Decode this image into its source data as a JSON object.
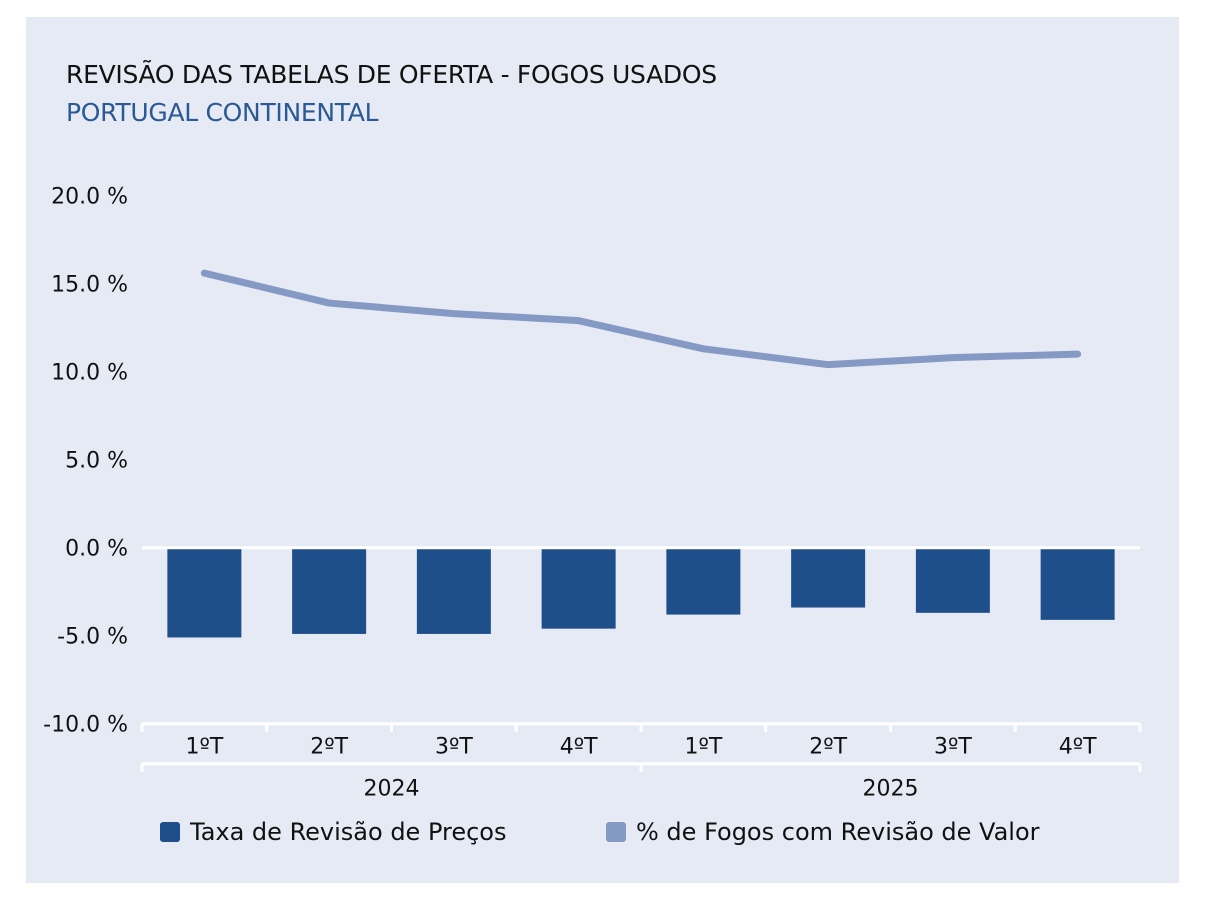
{
  "chart_data": {
    "type": "bar+line",
    "title": "REVISÃO DAS TABELAS DE OFERTA - FOGOS USADOS",
    "subtitle": "PORTUGAL CONTINENTAL",
    "categories": [
      "1ºT",
      "2ºT",
      "3ºT",
      "4ºT",
      "1ºT",
      "2ºT",
      "3ºT",
      "4ºT"
    ],
    "groups": [
      {
        "label": "2024",
        "span": 4
      },
      {
        "label": "2025",
        "span": 4
      }
    ],
    "yticks": [
      "20.0 %",
      "15.0 %",
      "10.0 %",
      "5.0 %",
      "0.0 %",
      "-5.0 %",
      "-10.0 %"
    ],
    "ylim": [
      -10,
      20
    ],
    "grid": false,
    "legend_position": "bottom",
    "series": [
      {
        "name": "Taxa de Revisão de Preços",
        "type": "bar",
        "color": "#1f4f8a",
        "values": [
          -5.1,
          -4.9,
          -4.9,
          -4.6,
          -3.8,
          -3.4,
          -3.7,
          -4.1
        ]
      },
      {
        "name": "% de Fogos com Revisão de Valor",
        "type": "line",
        "color": "#8499c4",
        "values": [
          15.6,
          13.9,
          13.3,
          12.9,
          11.3,
          10.4,
          10.8,
          11.0
        ]
      }
    ]
  }
}
